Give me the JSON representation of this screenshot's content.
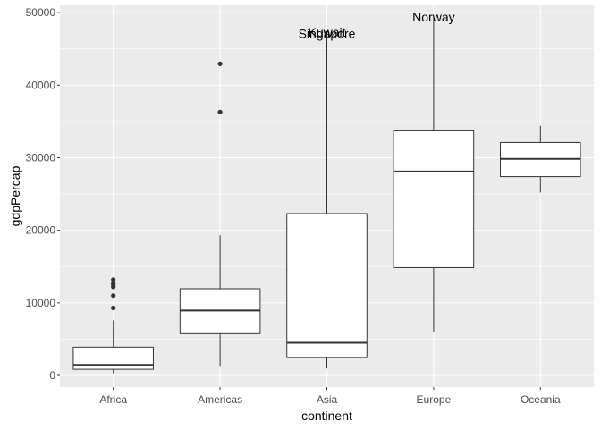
{
  "chart_data": {
    "type": "boxplot",
    "title": "",
    "xlabel": "continent",
    "ylabel": "gdpPercap",
    "ylim": [
      -1600,
      51000
    ],
    "yticks": [
      0,
      10000,
      20000,
      30000,
      40000,
      50000
    ],
    "ytick_labels": [
      "0",
      "10000",
      "20000",
      "30000",
      "40000",
      "50000"
    ],
    "grid": true,
    "panel_background": "#ebebeb",
    "grid_color": "#ffffff",
    "box_fill": "#ffffff",
    "line_color": "#333333",
    "categories": [
      "Africa",
      "Americas",
      "Asia",
      "Europe",
      "Oceania"
    ],
    "boxes": [
      {
        "category": "Africa",
        "min": 280,
        "q1": 850,
        "median": 1450,
        "q3": 3900,
        "max": 7600,
        "outliers": [
          9300,
          11000,
          12200,
          12500,
          12700,
          13200
        ]
      },
      {
        "category": "Americas",
        "min": 1200,
        "q1": 5750,
        "median": 8950,
        "q3": 11950,
        "max": 19300,
        "outliers": [
          36300,
          42950
        ]
      },
      {
        "category": "Asia",
        "min": 950,
        "q1": 2450,
        "median": 4500,
        "q3": 22300,
        "max": 47300,
        "outliers": []
      },
      {
        "category": "Europe",
        "min": 5900,
        "q1": 14850,
        "median": 28100,
        "q3": 33700,
        "max": 49400,
        "outliers": []
      },
      {
        "category": "Oceania",
        "min": 25200,
        "q1": 27400,
        "median": 29850,
        "q3": 32100,
        "max": 34400,
        "outliers": []
      }
    ],
    "annotations": [
      {
        "text": "Singapore",
        "category": "Asia",
        "y": 47100
      },
      {
        "text": "Kuwait",
        "category": "Asia",
        "y": 47300
      },
      {
        "text": "Norway",
        "category": "Europe",
        "y": 49400
      }
    ]
  }
}
